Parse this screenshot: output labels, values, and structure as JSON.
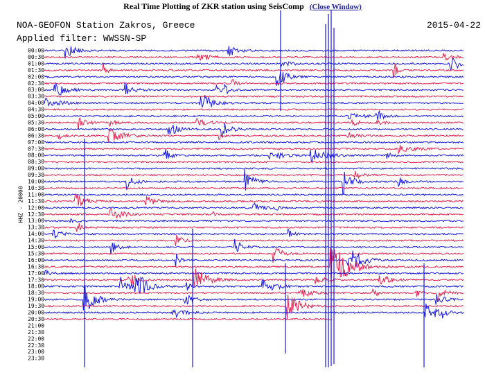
{
  "header": {
    "title": "Real Time Plotting of ZKR station using SeisComp",
    "link": "(Close Window)"
  },
  "station": "NOA-GEOFON Station Zakros, Greece",
  "date": "2015-04-22",
  "filter": "Applied filter: WWSSN-SP",
  "channel": "HHZ - 20000",
  "times": [
    "00:00",
    "00:30",
    "01:00",
    "01:30",
    "02:00",
    "02:30",
    "03:00",
    "03:30",
    "04:00",
    "04:30",
    "05:00",
    "05:30",
    "06:00",
    "06:30",
    "07:00",
    "07:30",
    "08:00",
    "08:30",
    "09:00",
    "09:30",
    "10:00",
    "10:30",
    "11:00",
    "11:30",
    "12:00",
    "12:30",
    "13:00",
    "13:30",
    "14:00",
    "14:30",
    "15:00",
    "15:30",
    "16:00",
    "16:30",
    "17:00",
    "17:30",
    "18:00",
    "18:30",
    "19:00",
    "19:30",
    "20:00",
    "20:30",
    "21:00",
    "21:30",
    "22:00",
    "22:30",
    "23:00",
    "23:30"
  ]
}
